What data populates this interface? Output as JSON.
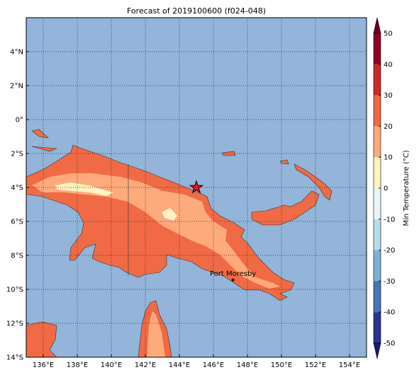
{
  "chart_data": {
    "type": "map",
    "title": "Forecast of 2019100600 (f024-048)",
    "xlim": [
      135,
      155
    ],
    "xticks": [
      {
        "value": 136,
        "label": "136°E"
      },
      {
        "value": 138,
        "label": "138°E"
      },
      {
        "value": 140,
        "label": "140°E"
      },
      {
        "value": 142,
        "label": "142°E"
      },
      {
        "value": 144,
        "label": "144°E"
      },
      {
        "value": 146,
        "label": "146°E"
      },
      {
        "value": 148,
        "label": "148°E"
      },
      {
        "value": 150,
        "label": "150°E"
      },
      {
        "value": 152,
        "label": "152°E"
      },
      {
        "value": 154,
        "label": "154°E"
      }
    ],
    "ylim": [
      -14,
      6
    ],
    "yticks": [
      {
        "value": -14,
        "label": "14°S"
      },
      {
        "value": -12,
        "label": "12°S"
      },
      {
        "value": -10,
        "label": "10°S"
      },
      {
        "value": -8,
        "label": "8°S"
      },
      {
        "value": -6,
        "label": "6°S"
      },
      {
        "value": -4,
        "label": "4°S"
      },
      {
        "value": -2,
        "label": "2°S"
      },
      {
        "value": 0,
        "label": "0°"
      },
      {
        "value": 2,
        "label": "2°N"
      },
      {
        "value": 4,
        "label": "4°N"
      }
    ],
    "grid": true,
    "colorbar": {
      "label": "Min Temperature (°C)",
      "lim": [
        -50,
        50
      ],
      "ticks": [
        -50,
        -40,
        -30,
        -20,
        -10,
        0,
        10,
        20,
        30,
        40,
        50
      ],
      "colors": [
        "#2b3590",
        "#4a74b4",
        "#7fb0d4",
        "#b8dcea",
        "#e9f6f7",
        "#fff3c2",
        "#fdaa7c",
        "#f06a45",
        "#cc2a2a",
        "#8e0325"
      ],
      "under_color": "#1a1c6a",
      "over_color": "#6e0020"
    },
    "star": {
      "lon": 145,
      "lat": -4
    },
    "markers": [
      {
        "name": "Port Moresby",
        "lon": 147.15,
        "lat": -9.45
      }
    ]
  }
}
